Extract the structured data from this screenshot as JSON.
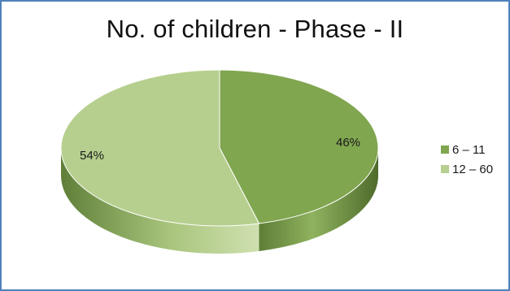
{
  "chart_data": {
    "type": "pie",
    "title": "No. of children - Phase - II",
    "categories": [
      "6 – 11",
      "12 – 60"
    ],
    "values": [
      46,
      54
    ],
    "data_labels": [
      "46%",
      "54%"
    ],
    "colors": [
      "#80a650",
      "#b6cf8e"
    ],
    "style": "3d",
    "legend_position": "right"
  }
}
